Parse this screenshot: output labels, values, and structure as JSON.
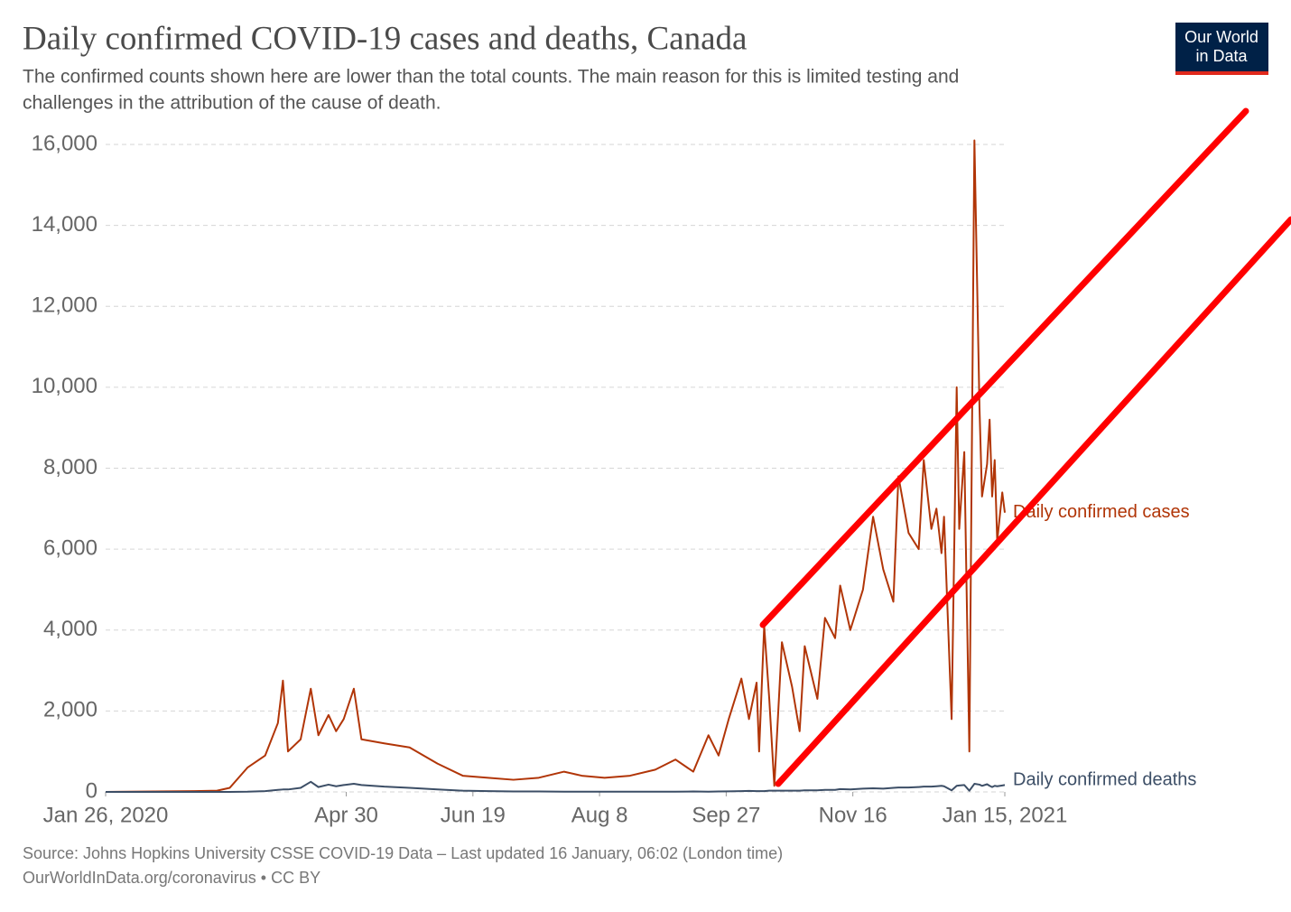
{
  "chart_data": {
    "type": "line",
    "title": "Daily confirmed COVID-19 cases and deaths, Canada",
    "subtitle": [
      "The confirmed counts shown here are lower than the total counts. The main reason for this is limited testing and",
      "challenges in the attribution of the cause of death."
    ],
    "source": [
      "Source: Johns Hopkins University CSSE COVID-19 Data – Last updated 16 January, 06:02 (London time)",
      "OurWorldInData.org/coronavirus • CC BY"
    ],
    "logo": [
      "Our World",
      "in Data"
    ],
    "x": [
      "2020-01-26",
      "2020-03-01",
      "2020-03-10",
      "2020-03-15",
      "2020-03-22",
      "2020-03-29",
      "2020-04-03",
      "2020-04-05",
      "2020-04-07",
      "2020-04-12",
      "2020-04-16",
      "2020-04-19",
      "2020-04-23",
      "2020-04-26",
      "2020-04-29",
      "2020-05-03",
      "2020-05-06",
      "2020-05-15",
      "2020-05-25",
      "2020-06-05",
      "2020-06-15",
      "2020-06-25",
      "2020-07-05",
      "2020-07-15",
      "2020-07-25",
      "2020-08-01",
      "2020-08-10",
      "2020-08-20",
      "2020-08-30",
      "2020-09-07",
      "2020-09-14",
      "2020-09-20",
      "2020-09-24",
      "2020-09-28",
      "2020-10-03",
      "2020-10-06",
      "2020-10-09",
      "2020-10-10",
      "2020-10-12",
      "2020-10-14",
      "2020-10-16",
      "2020-10-19",
      "2020-10-23",
      "2020-10-26",
      "2020-10-28",
      "2020-11-02",
      "2020-11-05",
      "2020-11-09",
      "2020-11-11",
      "2020-11-15",
      "2020-11-20",
      "2020-11-24",
      "2020-11-28",
      "2020-12-02",
      "2020-12-04",
      "2020-12-08",
      "2020-12-12",
      "2020-12-14",
      "2020-12-17",
      "2020-12-19",
      "2020-12-21",
      "2020-12-22",
      "2020-12-25",
      "2020-12-27",
      "2020-12-28",
      "2020-12-30",
      "2021-01-01",
      "2021-01-03",
      "2021-01-05",
      "2021-01-06",
      "2021-01-08",
      "2021-01-09",
      "2021-01-10",
      "2021-01-11",
      "2021-01-12",
      "2021-01-14",
      "2021-01-15"
    ],
    "series": [
      {
        "name": "Daily confirmed cases",
        "color": "#b13507",
        "values": [
          0,
          20,
          30,
          100,
          600,
          900,
          1700,
          2750,
          1000,
          1300,
          2550,
          1400,
          1900,
          1500,
          1800,
          2550,
          1300,
          1200,
          1100,
          700,
          400,
          350,
          300,
          350,
          500,
          400,
          350,
          400,
          550,
          800,
          500,
          1400,
          900,
          1800,
          2800,
          1800,
          2700,
          1000,
          4100,
          2300,
          150,
          3700,
          2600,
          1500,
          3600,
          2300,
          4300,
          3800,
          5100,
          4000,
          5000,
          6800,
          5500,
          4700,
          7800,
          6400,
          6000,
          8200,
          6500,
          7000,
          5900,
          6800,
          1800,
          10000,
          6500,
          8400,
          1000,
          16100,
          9500,
          7300,
          8100,
          9200,
          7300,
          8200,
          6200,
          7400,
          6900
        ]
      },
      {
        "name": "Daily confirmed deaths",
        "color": "#3c4e66",
        "values": [
          0,
          0,
          0,
          0,
          5,
          20,
          50,
          60,
          60,
          100,
          250,
          120,
          180,
          140,
          170,
          200,
          170,
          130,
          100,
          60,
          30,
          20,
          10,
          10,
          5,
          5,
          5,
          5,
          5,
          5,
          10,
          5,
          10,
          15,
          20,
          25,
          20,
          20,
          20,
          30,
          30,
          30,
          30,
          30,
          40,
          40,
          50,
          50,
          70,
          60,
          80,
          90,
          80,
          100,
          110,
          110,
          120,
          130,
          130,
          140,
          150,
          140,
          40,
          150,
          160,
          170,
          30,
          200,
          180,
          150,
          190,
          150,
          120,
          150,
          140,
          160,
          170
        ]
      }
    ],
    "xlim": [
      "2020-01-26",
      "2021-01-15"
    ],
    "xticks": [
      {
        "value": "2020-01-26",
        "label": "Jan 26, 2020"
      },
      {
        "value": "2020-04-30",
        "label": "Apr 30"
      },
      {
        "value": "2020-06-19",
        "label": "Jun 19"
      },
      {
        "value": "2020-08-08",
        "label": "Aug 8"
      },
      {
        "value": "2020-09-27",
        "label": "Sep 27"
      },
      {
        "value": "2020-11-16",
        "label": "Nov 16"
      },
      {
        "value": "2021-01-15",
        "label": "Jan 15, 2021"
      }
    ],
    "ylim": [
      0,
      16000
    ],
    "yticks": [
      0,
      {
        "value": 2000,
        "label": "2,000"
      },
      {
        "value": 4000,
        "label": "4,000"
      },
      {
        "value": 6000,
        "label": "6,000"
      },
      {
        "value": 8000,
        "label": "8,000"
      },
      {
        "value": 10000,
        "label": "10,000"
      },
      {
        "value": 12000,
        "label": "12,000"
      },
      {
        "value": 14000,
        "label": "14,000"
      },
      {
        "value": 16000,
        "label": "16,000"
      }
    ],
    "grid": true
  }
}
